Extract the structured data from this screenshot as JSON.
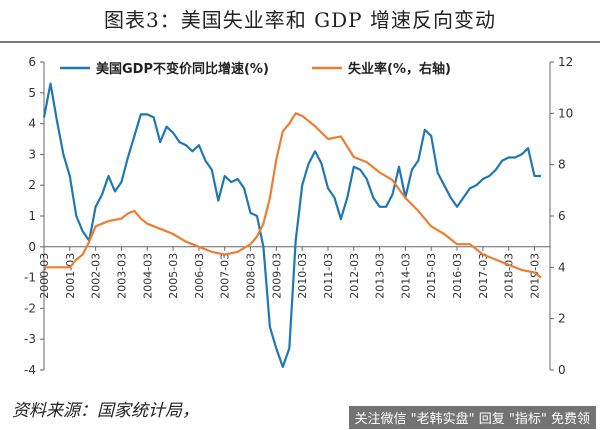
{
  "header": {
    "title": "图表3：美国失业率和 GDP 增速反向变动"
  },
  "footer": {
    "source": "资料来源：国家统计局，",
    "watermark": "关注微信 \"老韩实盘\" 回复 \"指标\" 免费领"
  },
  "colors": {
    "gdp": "#1f77b4",
    "unemployment": "#ed7d31"
  },
  "chart_data": {
    "type": "line",
    "legend_position": "top",
    "grid": false,
    "left_axis": {
      "ylim": [
        -4,
        6
      ],
      "ticks": [
        "-4",
        "-3",
        "-2",
        "-1",
        "0",
        "1",
        "2",
        "3",
        "4",
        "5",
        "6"
      ]
    },
    "right_axis": {
      "ylim": [
        0,
        12
      ],
      "ticks": [
        "0",
        "2",
        "4",
        "6",
        "8",
        "10",
        "12"
      ]
    },
    "x_tick_labels": [
      "2000-03",
      "2001-03",
      "2002-03",
      "2003-03",
      "2004-03",
      "2005-03",
      "2006-03",
      "2007-03",
      "2008-03",
      "2009-03",
      "2010-03",
      "2011-03",
      "2012-03",
      "2013-03",
      "2014-03",
      "2015-03",
      "2016-03",
      "2017-03",
      "2018-03",
      "2019-03"
    ],
    "series": [
      {
        "name": "美国GDP不变价同比增速(%)",
        "axis": "left",
        "color": "#1f77b4",
        "x": [
          2000.0,
          2000.25,
          2000.5,
          2000.75,
          2001.0,
          2001.25,
          2001.5,
          2001.75,
          2002.0,
          2002.25,
          2002.5,
          2002.75,
          2003.0,
          2003.25,
          2003.5,
          2003.75,
          2004.0,
          2004.25,
          2004.5,
          2004.75,
          2005.0,
          2005.25,
          2005.5,
          2005.75,
          2006.0,
          2006.25,
          2006.5,
          2006.75,
          2007.0,
          2007.25,
          2007.5,
          2007.75,
          2008.0,
          2008.25,
          2008.5,
          2008.75,
          2009.0,
          2009.25,
          2009.5,
          2009.75,
          2010.0,
          2010.25,
          2010.5,
          2010.75,
          2011.0,
          2011.25,
          2011.5,
          2011.75,
          2012.0,
          2012.25,
          2012.5,
          2012.75,
          2013.0,
          2013.25,
          2013.5,
          2013.75,
          2014.0,
          2014.25,
          2014.5,
          2014.75,
          2015.0,
          2015.25,
          2015.5,
          2015.75,
          2016.0,
          2016.25,
          2016.5,
          2016.75,
          2017.0,
          2017.25,
          2017.5,
          2017.75,
          2018.0,
          2018.25,
          2018.5,
          2018.75,
          2019.0,
          2019.25
        ],
        "values": [
          4.2,
          5.3,
          4.1,
          3.0,
          2.3,
          1.0,
          0.5,
          0.2,
          1.3,
          1.7,
          2.3,
          1.8,
          2.1,
          2.9,
          3.6,
          4.3,
          4.3,
          4.2,
          3.4,
          3.9,
          3.7,
          3.4,
          3.3,
          3.1,
          3.3,
          2.8,
          2.5,
          1.5,
          2.3,
          2.1,
          2.2,
          1.9,
          1.1,
          1.0,
          0.0,
          -2.6,
          -3.3,
          -3.9,
          -3.3,
          0.2,
          2.0,
          2.7,
          3.1,
          2.7,
          1.9,
          1.6,
          0.9,
          1.6,
          2.6,
          2.5,
          2.2,
          1.6,
          1.3,
          1.3,
          1.7,
          2.6,
          1.6,
          2.5,
          2.8,
          3.8,
          3.6,
          2.4,
          2.0,
          1.6,
          1.3,
          1.6,
          1.9,
          2.0,
          2.2,
          2.3,
          2.5,
          2.8,
          2.9,
          2.9,
          3.0,
          3.2,
          2.3,
          2.3
        ]
      },
      {
        "name": "失业率(%，右轴)",
        "axis": "right",
        "color": "#ed7d31",
        "x": [
          2000.0,
          2000.5,
          2001.0,
          2001.25,
          2001.5,
          2001.75,
          2002.0,
          2002.5,
          2003.0,
          2003.25,
          2003.5,
          2003.75,
          2004.0,
          2004.5,
          2005.0,
          2005.5,
          2006.0,
          2006.5,
          2007.0,
          2007.5,
          2008.0,
          2008.25,
          2008.5,
          2008.75,
          2009.0,
          2009.25,
          2009.5,
          2009.75,
          2010.0,
          2010.5,
          2011.0,
          2011.5,
          2012.0,
          2012.5,
          2013.0,
          2013.5,
          2014.0,
          2014.5,
          2015.0,
          2015.5,
          2016.0,
          2016.5,
          2017.0,
          2017.5,
          2018.0,
          2018.5,
          2019.0,
          2019.25
        ],
        "values": [
          4.0,
          4.0,
          4.0,
          4.3,
          4.5,
          5.0,
          5.6,
          5.8,
          5.9,
          6.1,
          6.2,
          5.9,
          5.7,
          5.5,
          5.3,
          5.0,
          4.8,
          4.6,
          4.5,
          4.6,
          4.9,
          5.2,
          5.7,
          6.7,
          8.2,
          9.3,
          9.6,
          10.0,
          9.9,
          9.5,
          9.0,
          9.1,
          8.3,
          8.1,
          7.7,
          7.4,
          6.7,
          6.2,
          5.6,
          5.3,
          4.9,
          4.9,
          4.5,
          4.3,
          4.1,
          3.9,
          3.8,
          3.6
        ]
      }
    ]
  }
}
